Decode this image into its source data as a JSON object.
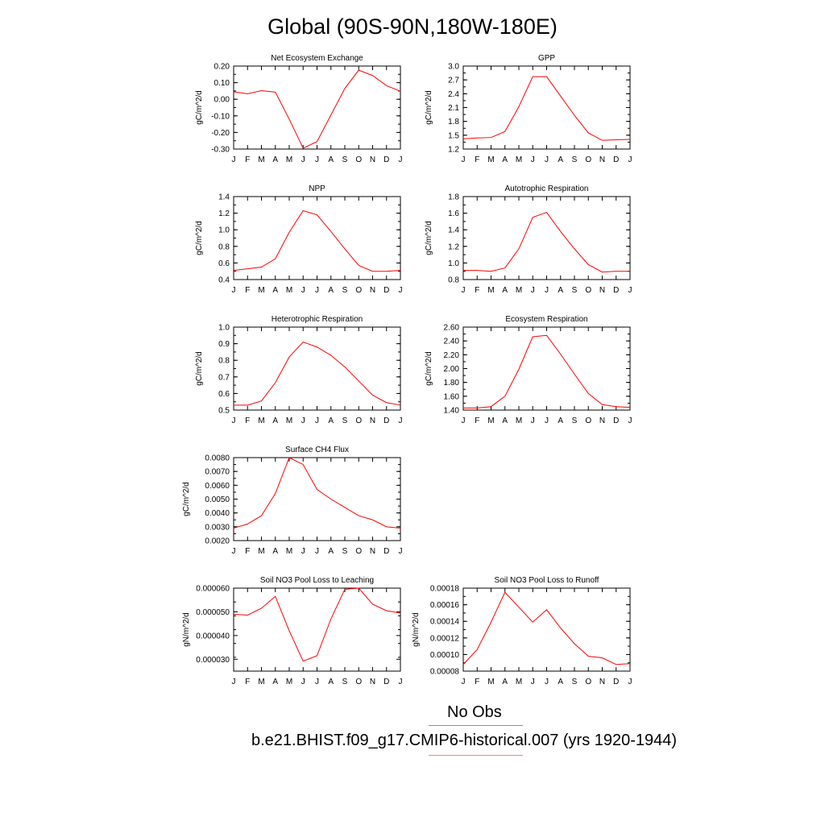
{
  "title": "Global (90S-90N,180W-180E)",
  "legend": [
    {
      "label": "No Obs",
      "color": "#8080ff"
    },
    {
      "label": "b.e21.BHIST.f09_g17.CMIP6-historical.007 (yrs 1920-1944)",
      "color": "#ff8080"
    }
  ],
  "series_color": "#ff0000",
  "chart_data": [
    {
      "type": "line",
      "title": "Net Ecosystem Exchange",
      "ylabel": "gC/m^2/d",
      "categories": [
        "J",
        "F",
        "M",
        "A",
        "M",
        "J",
        "J",
        "A",
        "S",
        "O",
        "N",
        "D",
        "J"
      ],
      "values": [
        0.045,
        0.033,
        0.052,
        0.043,
        -0.12,
        -0.295,
        -0.255,
        -0.095,
        0.065,
        0.175,
        0.143,
        0.082,
        0.048
      ],
      "ylim": [
        -0.3,
        0.2
      ],
      "yticks": [
        "0.20",
        "0.10",
        "0.00",
        "-0.10",
        "-0.20",
        "-0.30"
      ]
    },
    {
      "type": "line",
      "title": "GPP",
      "ylabel": "gC/m^2/d",
      "categories": [
        "J",
        "F",
        "M",
        "A",
        "M",
        "J",
        "J",
        "A",
        "S",
        "O",
        "N",
        "D",
        "J"
      ],
      "values": [
        1.42,
        1.44,
        1.45,
        1.58,
        2.12,
        2.77,
        2.77,
        2.35,
        1.93,
        1.55,
        1.39,
        1.4,
        1.41
      ],
      "ylim": [
        1.2,
        3.0
      ],
      "yticks": [
        "3.0",
        "2.7",
        "2.4",
        "2.1",
        "1.8",
        "1.5",
        "1.2"
      ]
    },
    {
      "type": "line",
      "title": "NPP",
      "ylabel": "gC/m^2/d",
      "categories": [
        "J",
        "F",
        "M",
        "A",
        "M",
        "J",
        "J",
        "A",
        "S",
        "O",
        "N",
        "D",
        "J"
      ],
      "values": [
        0.51,
        0.53,
        0.55,
        0.65,
        0.97,
        1.23,
        1.18,
        0.98,
        0.77,
        0.57,
        0.5,
        0.5,
        0.51
      ],
      "ylim": [
        0.4,
        1.4
      ],
      "yticks": [
        "1.4",
        "1.2",
        "1.0",
        "0.8",
        "0.6",
        "0.4"
      ]
    },
    {
      "type": "line",
      "title": "Autotrophic Respiration",
      "ylabel": "gC/m^2/d",
      "categories": [
        "J",
        "F",
        "M",
        "A",
        "M",
        "J",
        "J",
        "A",
        "S",
        "O",
        "N",
        "D",
        "J"
      ],
      "values": [
        0.91,
        0.91,
        0.9,
        0.94,
        1.17,
        1.55,
        1.61,
        1.38,
        1.17,
        0.98,
        0.89,
        0.9,
        0.9
      ],
      "ylim": [
        0.8,
        1.8
      ],
      "yticks": [
        "1.8",
        "1.6",
        "1.4",
        "1.2",
        "1.0",
        "0.8"
      ]
    },
    {
      "type": "line",
      "title": "Heterotrophic Respiration",
      "ylabel": "gC/m^2/d",
      "categories": [
        "J",
        "F",
        "M",
        "A",
        "M",
        "J",
        "J",
        "A",
        "S",
        "O",
        "N",
        "D",
        "J"
      ],
      "values": [
        0.53,
        0.53,
        0.555,
        0.665,
        0.82,
        0.91,
        0.88,
        0.83,
        0.76,
        0.675,
        0.59,
        0.545,
        0.53
      ],
      "ylim": [
        0.5,
        1.0
      ],
      "yticks": [
        "1.0",
        "0.9",
        "0.8",
        "0.7",
        "0.6",
        "0.5"
      ]
    },
    {
      "type": "line",
      "title": "Ecosystem Respiration",
      "ylabel": "gC/m^2/d",
      "categories": [
        "J",
        "F",
        "M",
        "A",
        "M",
        "J",
        "J",
        "A",
        "S",
        "O",
        "N",
        "D",
        "J"
      ],
      "values": [
        1.43,
        1.43,
        1.45,
        1.6,
        1.99,
        2.46,
        2.48,
        2.21,
        1.92,
        1.64,
        1.48,
        1.45,
        1.44
      ],
      "ylim": [
        1.4,
        2.6
      ],
      "yticks": [
        "2.60",
        "2.40",
        "2.20",
        "2.00",
        "1.80",
        "1.60",
        "1.40"
      ]
    },
    {
      "type": "line",
      "title": "Surface CH4 Flux",
      "ylabel": "gC/m^2/d",
      "categories": [
        "J",
        "F",
        "M",
        "A",
        "M",
        "J",
        "J",
        "A",
        "S",
        "O",
        "N",
        "D",
        "J"
      ],
      "values": [
        0.0029,
        0.0032,
        0.0038,
        0.0054,
        0.008,
        0.0075,
        0.0057,
        0.005,
        0.0044,
        0.0038,
        0.0035,
        0.003,
        0.0029
      ],
      "ylim": [
        0.002,
        0.008
      ],
      "yticks": [
        "0.0080",
        "0.0070",
        "0.0060",
        "0.0050",
        "0.0040",
        "0.0030",
        "0.0020"
      ]
    },
    {
      "type": "line",
      "title": "Soil NO3 Pool Loss to Leaching",
      "ylabel": "gN/m^2/d",
      "categories": [
        "J",
        "F",
        "M",
        "A",
        "M",
        "J",
        "J",
        "A",
        "S",
        "O",
        "N",
        "D",
        "J"
      ],
      "values": [
        4.9e-05,
        4.86e-05,
        5.15e-05,
        5.65e-05,
        4.2e-05,
        2.92e-05,
        3.15e-05,
        4.7e-05,
        5.95e-05,
        6e-05,
        5.32e-05,
        5.05e-05,
        4.95e-05
      ],
      "ylim": [
        2.5e-05,
        6e-05
      ],
      "yticks": [
        "0.000060",
        "0.000050",
        "0.000040",
        "0.000030"
      ],
      "ytick_values": [
        6e-05,
        5e-05,
        4e-05,
        3e-05
      ]
    },
    {
      "type": "line",
      "title": "Soil NO3 Pool Loss to Runoff",
      "ylabel": "gN/m^2/d",
      "categories": [
        "J",
        "F",
        "M",
        "A",
        "M",
        "J",
        "J",
        "A",
        "S",
        "O",
        "N",
        "D",
        "J"
      ],
      "values": [
        8.8e-05,
        0.000106,
        0.000139,
        0.000175,
        0.000157,
        0.000139,
        0.000154,
        0.000132,
        0.000113,
        9.8e-05,
        9.6e-05,
        8.8e-05,
        8.9e-05
      ],
      "ylim": [
        8e-05,
        0.00018
      ],
      "yticks": [
        "0.00018",
        "0.00016",
        "0.00014",
        "0.00012",
        "0.00010",
        "0.00008"
      ]
    }
  ]
}
